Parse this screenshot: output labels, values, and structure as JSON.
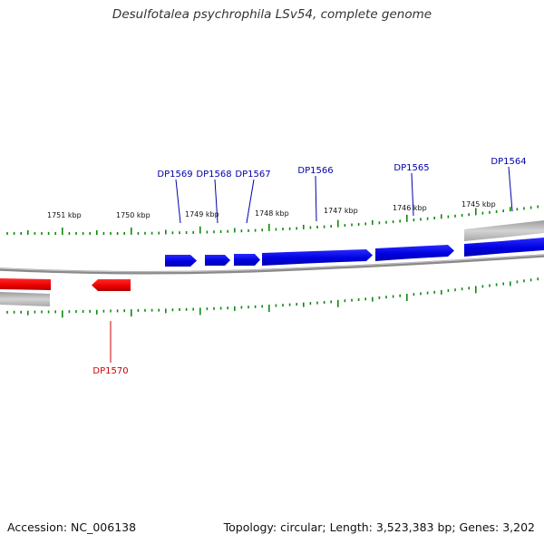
{
  "title": "Desulfotalea psychrophila LSv54, complete genome",
  "footer": {
    "accession": "Accession: NC_006138",
    "summary": "Topology: circular; Length: 3,523,383 bp; Genes: 3,202"
  },
  "colors": {
    "forward_gene": "#0000e6",
    "reverse_gene": "#ee0000",
    "forward_label": "#0000aa",
    "reverse_label": "#cc0000",
    "tick": "#118811",
    "backbone": "#8a8a8a",
    "partial_gene": "#b8b8b8"
  },
  "scale_labels": [
    "1751 kbp",
    "1750 kbp",
    "1749 kbp",
    "1748 kbp",
    "1747 kbp",
    "1746 kbp",
    "1745 kbp"
  ],
  "forward_genes": [
    "DP1569",
    "DP1568",
    "DP1567",
    "DP1566",
    "DP1565",
    "DP1564"
  ],
  "reverse_genes": [
    "DP1570"
  ]
}
